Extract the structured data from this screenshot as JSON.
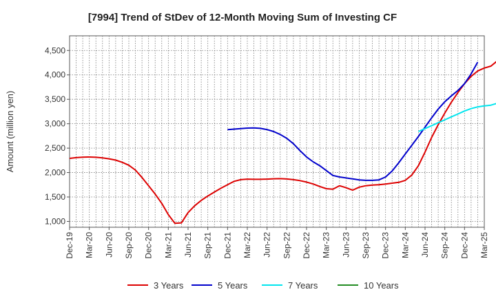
{
  "chart_data": {
    "type": "line",
    "title": "[7994]  Trend of StDev of 12-Month Moving Sum of Investing CF",
    "xlabel": "",
    "ylabel": "Amount (million yen)",
    "ylim": [
      880,
      4800
    ],
    "yticks": [
      1000,
      1500,
      2000,
      2500,
      3000,
      3500,
      4000,
      4500
    ],
    "ytick_labels": [
      "1,000",
      "1,500",
      "2,000",
      "2,500",
      "3,000",
      "3,500",
      "4,000",
      "4,500"
    ],
    "xtick_labels": [
      "Dec-19",
      "Mar-20",
      "Jun-20",
      "Sep-20",
      "Dec-20",
      "Mar-21",
      "Jun-21",
      "Sep-21",
      "Dec-21",
      "Mar-22",
      "Jun-22",
      "Sep-22",
      "Dec-22",
      "Mar-23",
      "Jun-23",
      "Sep-23",
      "Dec-23",
      "Mar-24",
      "Jun-24",
      "Sep-24",
      "Dec-24",
      "Mar-25"
    ],
    "grid": true,
    "legend_position": "bottom",
    "series": [
      {
        "name": "3 Years",
        "color": "#dd0000",
        "start_month_index": 0,
        "values": [
          2290,
          2305,
          2315,
          2318,
          2313,
          2300,
          2282,
          2255,
          2210,
          2150,
          2050,
          1900,
          1730,
          1560,
          1370,
          1140,
          960,
          970,
          1180,
          1320,
          1430,
          1520,
          1600,
          1680,
          1750,
          1820,
          1855,
          1865,
          1862,
          1862,
          1865,
          1872,
          1875,
          1868,
          1855,
          1835,
          1805,
          1765,
          1715,
          1670,
          1660,
          1730,
          1690,
          1640,
          1700,
          1730,
          1745,
          1752,
          1765,
          1782,
          1800,
          1840,
          1950,
          2140,
          2420,
          2720,
          2980,
          3220,
          3440,
          3640,
          3820,
          3970,
          4080,
          4140,
          4180,
          4290,
          4450,
          4710
        ]
      },
      {
        "name": "5 Years",
        "color": "#0000cc",
        "start_month_index": 24,
        "values": [
          2880,
          2890,
          2900,
          2910,
          2915,
          2905,
          2880,
          2840,
          2780,
          2700,
          2590,
          2450,
          2320,
          2220,
          2140,
          2040,
          1940,
          1910,
          1890,
          1870,
          1850,
          1840,
          1840,
          1850,
          1910,
          2030,
          2200,
          2380,
          2560,
          2740,
          2930,
          3120,
          3300,
          3450,
          3570,
          3680,
          3820,
          4020,
          4260
        ]
      },
      {
        "name": "7 Years",
        "color": "#00e5ee",
        "start_month_index": 53,
        "values": [
          2840,
          2900,
          2960,
          3020,
          3080,
          3140,
          3200,
          3260,
          3310,
          3345,
          3365,
          3380,
          3420,
          3510,
          3670
        ]
      },
      {
        "name": "10 Years",
        "color": "#228b22",
        "start_month_index": 0,
        "values": []
      }
    ]
  }
}
